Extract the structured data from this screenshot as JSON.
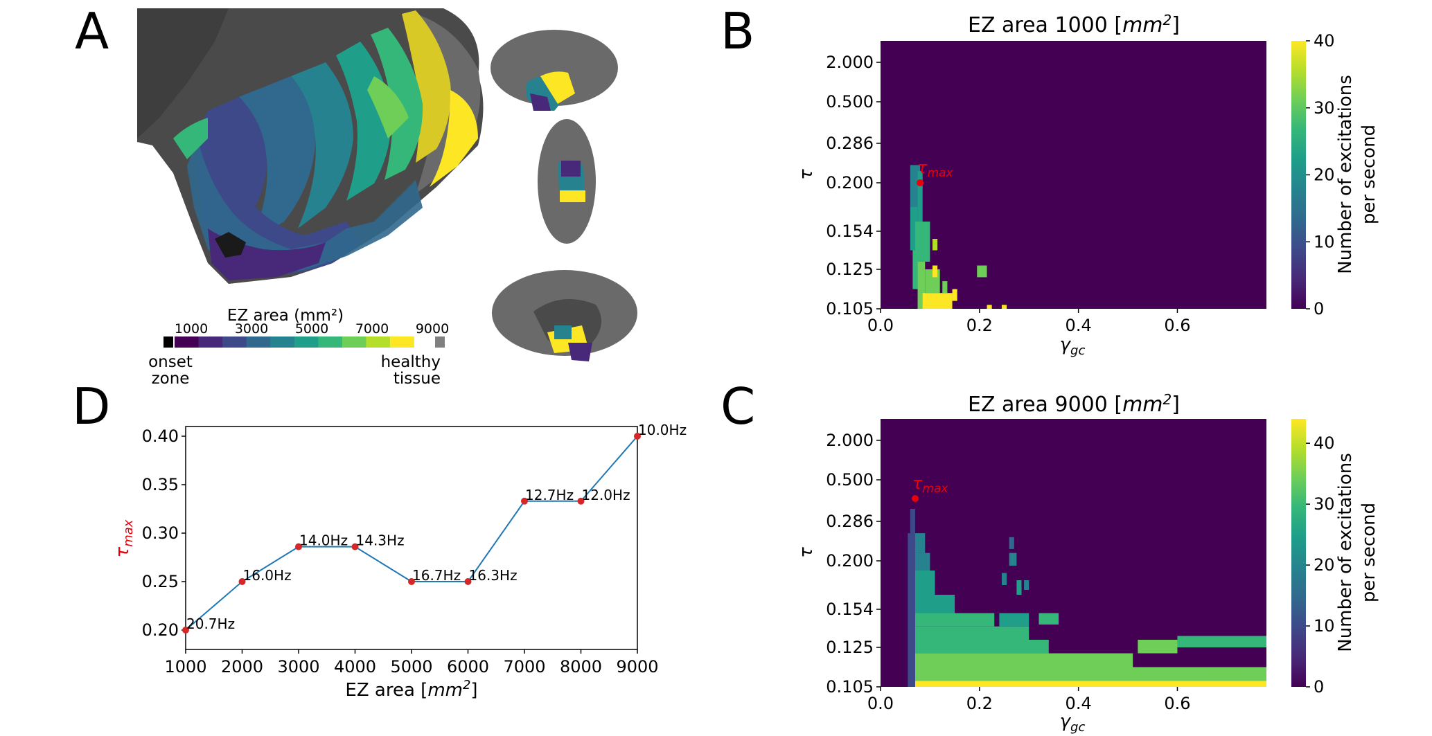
{
  "panels": {
    "a": "A",
    "b": "B",
    "c": "C",
    "d": "D"
  },
  "colors": {
    "viridis": [
      "#440154",
      "#482878",
      "#3e4989",
      "#31688e",
      "#26828e",
      "#1f9e89",
      "#35b779",
      "#6ece58",
      "#b5de2b",
      "#fde725"
    ],
    "line": "#1f77b4",
    "marker": "#d62728",
    "tau_max": "#e8000b",
    "onset": "#000000",
    "healthy": "#808080"
  },
  "brain_legend": {
    "title": "EZ area (mm²)",
    "ticks": [
      "1000",
      "3000",
      "5000",
      "7000",
      "9000"
    ],
    "left_label_1": "onset",
    "left_label_2": "zone",
    "right_label_1": "healthy",
    "right_label_2": "tissue"
  },
  "heatmap_common": {
    "ylabel": "τ",
    "xlabel_main": "γ",
    "xlabel_sub": "gc",
    "marker_label_main": "τ",
    "marker_label_sub": "max",
    "y_tick_labels": [
      "2.000",
      "0.500",
      "0.286",
      "0.200",
      "0.154",
      "0.125",
      "0.105"
    ],
    "x_tick_labels": [
      "0.0",
      "0.2",
      "0.4",
      "0.6"
    ],
    "cbar_label_1": "Number of excitations",
    "cbar_label_2": "per second"
  },
  "heatmap_b": {
    "title_prefix": "EZ area 1000 [",
    "title_unit": "mm",
    "title_exp": "2",
    "title_suffix": "]",
    "cbar_ticks": [
      "0",
      "10",
      "20",
      "30",
      "40"
    ]
  },
  "heatmap_c": {
    "title_prefix": "EZ area 9000 [",
    "title_unit": "mm",
    "title_exp": "2",
    "title_suffix": "]",
    "cbar_ticks": [
      "0",
      "10",
      "20",
      "30",
      "40"
    ]
  },
  "chart_data": [
    {
      "type": "line",
      "panel": "D",
      "title": "",
      "x": [
        1000,
        2000,
        3000,
        4000,
        5000,
        6000,
        7000,
        8000,
        9000
      ],
      "y": [
        0.2,
        0.25,
        0.286,
        0.286,
        0.25,
        0.25,
        0.333,
        0.333,
        0.4
      ],
      "point_labels": [
        "20.7Hz",
        "16.0Hz",
        "14.0Hz",
        "14.3Hz",
        "16.7Hz",
        "16.3Hz",
        "12.7Hz",
        "12.0Hz",
        "10.0Hz"
      ],
      "xlabel_prefix": "EZ area [",
      "xlabel_unit": "mm",
      "xlabel_exp": "2",
      "xlabel_suffix": "]",
      "ylabel_main": "τ",
      "ylabel_sub": "max",
      "xlim": [
        1000,
        9000
      ],
      "ylim": [
        0.18,
        0.41
      ],
      "x_ticks": [
        1000,
        2000,
        3000,
        4000,
        5000,
        6000,
        7000,
        8000,
        9000
      ],
      "y_ticks": [
        0.2,
        0.25,
        0.3,
        0.35,
        0.4
      ],
      "y_tick_labels": [
        "0.20",
        "0.25",
        "0.30",
        "0.35",
        "0.40"
      ]
    },
    {
      "type": "heatmap",
      "panel": "B",
      "title": "EZ area 1000 [mm2]",
      "x_range": [
        0.0,
        0.78
      ],
      "y_categories": [
        "0.105",
        "0.125",
        "0.154",
        "0.200",
        "0.286",
        "0.500",
        "2.000"
      ],
      "clim": [
        0,
        40
      ],
      "tau_max": {
        "gamma_gc": 0.08,
        "tau": 0.2
      },
      "blocks": [
        {
          "x0": 0.06,
          "x1": 0.08,
          "r0": 2.5,
          "r1": 3.45,
          "v": 18
        },
        {
          "x0": 0.06,
          "x1": 0.075,
          "r0": 1.5,
          "r1": 2.5,
          "v": 22
        },
        {
          "x0": 0.065,
          "x1": 0.075,
          "r0": 0.5,
          "r1": 1.5,
          "v": 26
        },
        {
          "x0": 0.075,
          "x1": 0.085,
          "r0": 2.2,
          "r1": 3.3,
          "v": 24
        },
        {
          "x0": 0.07,
          "x1": 0.1,
          "r0": 1.2,
          "r1": 2.2,
          "v": 28
        },
        {
          "x0": 0.075,
          "x1": 0.09,
          "r0": -0.2,
          "r1": 1.2,
          "v": 32
        },
        {
          "x0": 0.09,
          "x1": 0.12,
          "r0": 0.4,
          "r1": 1.0,
          "v": 33
        },
        {
          "x0": 0.085,
          "x1": 0.145,
          "r0": -0.2,
          "r1": 0.4,
          "v": 40
        },
        {
          "x0": 0.105,
          "x1": 0.115,
          "r0": 0.8,
          "r1": 1.1,
          "v": 38
        },
        {
          "x0": 0.125,
          "x1": 0.135,
          "r0": 0.4,
          "r1": 0.7,
          "v": 30
        },
        {
          "x0": 0.145,
          "x1": 0.155,
          "r0": 0.2,
          "r1": 0.5,
          "v": 40
        },
        {
          "x0": 0.105,
          "x1": 0.115,
          "r0": 1.5,
          "r1": 1.8,
          "v": 34
        },
        {
          "x0": 0.195,
          "x1": 0.215,
          "r0": 0.8,
          "r1": 1.1,
          "v": 32
        },
        {
          "x0": 0.215,
          "x1": 0.225,
          "r0": -0.2,
          "r1": 0.1,
          "v": 40
        },
        {
          "x0": 0.245,
          "x1": 0.255,
          "r0": -0.2,
          "r1": 0.1,
          "v": 40
        }
      ]
    },
    {
      "type": "heatmap",
      "panel": "C",
      "title": "EZ area 9000 [mm2]",
      "x_range": [
        0.0,
        0.78
      ],
      "y_categories": [
        "0.105",
        "0.125",
        "0.154",
        "0.200",
        "0.286",
        "0.500",
        "2.000"
      ],
      "clim": [
        0,
        44
      ],
      "tau_max": {
        "gamma_gc": 0.07,
        "tau": 0.4
      },
      "bottom_rows": [
        {
          "r0": -0.2,
          "r1": 0.15,
          "x1": 0.78,
          "v": 42
        },
        {
          "r0": 0.15,
          "r1": 0.5,
          "x1": 0.78,
          "v": 36
        },
        {
          "r0": 0.5,
          "r1": 0.85,
          "x1": 0.52,
          "v": 33
        },
        {
          "r0": 0.85,
          "r1": 1.2,
          "x1": 0.34,
          "v": 30
        },
        {
          "r0": 1.2,
          "r1": 1.55,
          "x1": 0.3,
          "v": 28
        },
        {
          "r0": 1.55,
          "r1": 1.9,
          "x1": 0.23,
          "v": 27
        },
        {
          "r0": 1.9,
          "r1": 2.3,
          "x1": 0.15,
          "v": 25
        },
        {
          "r0": 2.3,
          "r1": 2.8,
          "x1": 0.11,
          "v": 22
        },
        {
          "r0": 2.8,
          "r1": 3.2,
          "x1": 0.1,
          "v": 20
        },
        {
          "r0": 3.2,
          "r1": 3.7,
          "x1": 0.09,
          "v": 18
        }
      ],
      "blocks": [
        {
          "x0": 0.055,
          "x1": 0.07,
          "r0": 0.0,
          "r1": 3.7,
          "v": 10
        },
        {
          "x0": 0.06,
          "x1": 0.07,
          "r0": 3.7,
          "r1": 4.3,
          "v": 8
        },
        {
          "x0": 0.6,
          "x1": 0.78,
          "r0": 1.0,
          "r1": 1.3,
          "v": 30
        },
        {
          "x0": 0.52,
          "x1": 0.6,
          "r0": 0.85,
          "r1": 1.2,
          "v": 32
        },
        {
          "x0": 0.24,
          "x1": 0.3,
          "r0": 1.55,
          "r1": 1.9,
          "v": 26
        },
        {
          "x0": 0.32,
          "x1": 0.36,
          "r0": 1.6,
          "r1": 1.9,
          "v": 27
        },
        {
          "x0": 0.26,
          "x1": 0.275,
          "r0": 2.9,
          "r1": 3.2,
          "v": 20
        },
        {
          "x0": 0.26,
          "x1": 0.27,
          "r0": 3.3,
          "r1": 3.6,
          "v": 16
        },
        {
          "x0": 0.245,
          "x1": 0.255,
          "r0": 2.5,
          "r1": 2.75,
          "v": 20
        },
        {
          "x0": 0.275,
          "x1": 0.285,
          "r0": 2.3,
          "r1": 2.6,
          "v": 22
        },
        {
          "x0": 0.29,
          "x1": 0.3,
          "r0": 2.4,
          "r1": 2.6,
          "v": 20
        }
      ],
      "holes": [
        {
          "x0": 0.51,
          "x1": 0.525,
          "r0": 0.5,
          "r1": 0.85
        },
        {
          "x0": 0.63,
          "x1": 0.645,
          "r0": 0.5,
          "r1": 0.85
        },
        {
          "x0": 0.66,
          "x1": 0.73,
          "r0": 0.55,
          "r1": 0.85
        },
        {
          "x0": 0.61,
          "x1": 0.75,
          "r0": 1.3,
          "r1": 1.55
        }
      ]
    }
  ]
}
